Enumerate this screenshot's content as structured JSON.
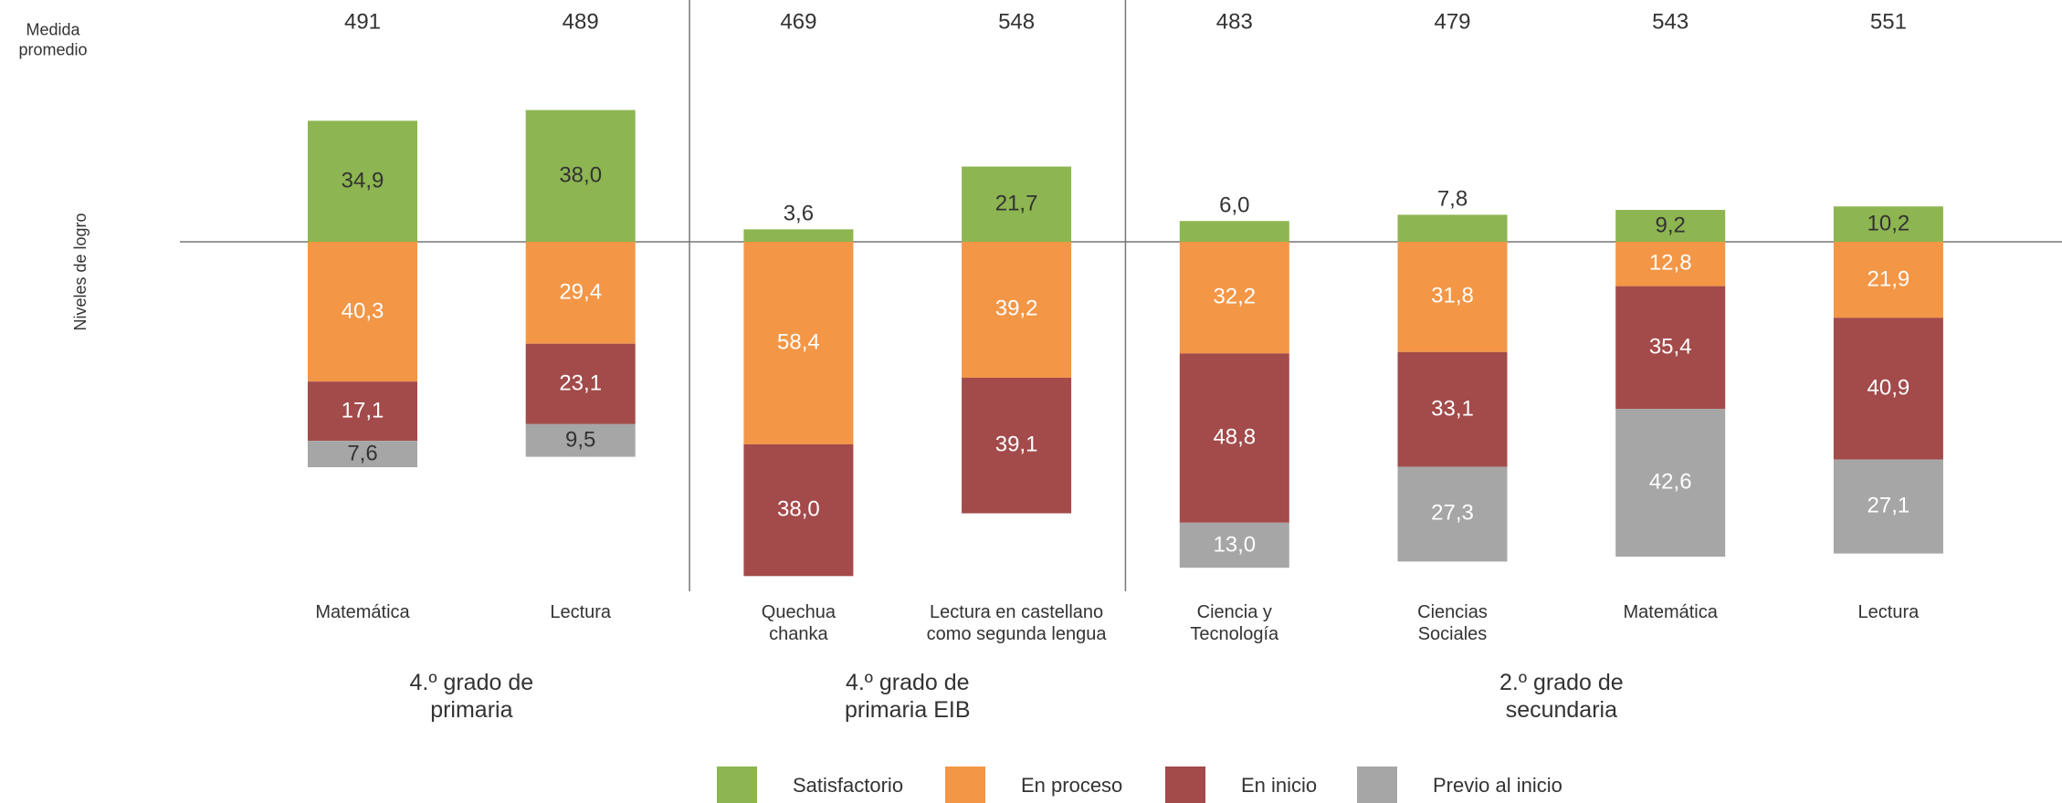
{
  "chart_data": {
    "type": "diverging-stacked-bar",
    "row_label": "Medida promedio",
    "axis_label": "Niveles de logro",
    "categories": [
      "Matemática",
      "Lectura",
      "Quechua chanka",
      "Lectura en castellano como segunda lengua",
      "Ciencia y Tecnología",
      "Ciencias Sociales",
      "Matemática",
      "Lectura"
    ],
    "averages": [
      "491",
      "489",
      "469",
      "548",
      "483",
      "479",
      "543",
      "551"
    ],
    "groups": [
      {
        "label": "4.º grado de primaria",
        "start": 0,
        "end": 1
      },
      {
        "label": "4.º grado de primaria EIB",
        "start": 2,
        "end": 3
      },
      {
        "label": "2.º grado de secundaria",
        "start": 4,
        "end": 7
      }
    ],
    "series": [
      {
        "name": "Satisfactorio",
        "color": "#8db551",
        "direction": "up",
        "values": [
          34.9,
          38.0,
          3.6,
          21.7,
          6.0,
          7.8,
          9.2,
          10.2
        ],
        "value_labels": [
          "34,9",
          "38,0",
          "3,6",
          "21,7",
          "6,0",
          "7,8",
          "9,2",
          "10,2"
        ]
      },
      {
        "name": "En proceso",
        "color": "#f39646",
        "direction": "down",
        "values": [
          40.3,
          29.4,
          58.4,
          39.2,
          32.2,
          31.8,
          12.8,
          21.9
        ],
        "value_labels": [
          "40,3",
          "29,4",
          "58,4",
          "39,2",
          "32,2",
          "31,8",
          "12,8",
          "21,9"
        ]
      },
      {
        "name": "En inicio",
        "color": "#a34a4a",
        "direction": "down",
        "values": [
          17.1,
          23.1,
          38.0,
          39.1,
          48.8,
          33.1,
          35.4,
          40.9
        ],
        "value_labels": [
          "17,1",
          "23,1",
          "38,0",
          "39,1",
          "48,8",
          "33,1",
          "35,4",
          "40,9"
        ]
      },
      {
        "name": "Previo al inicio",
        "color": "#a6a6a6",
        "direction": "down",
        "values": [
          7.6,
          9.5,
          null,
          null,
          13.0,
          27.3,
          42.6,
          27.1
        ],
        "value_labels": [
          "7,6",
          "9,5",
          null,
          null,
          "13,0",
          "27,3",
          "42,6",
          "27,1"
        ]
      }
    ]
  }
}
